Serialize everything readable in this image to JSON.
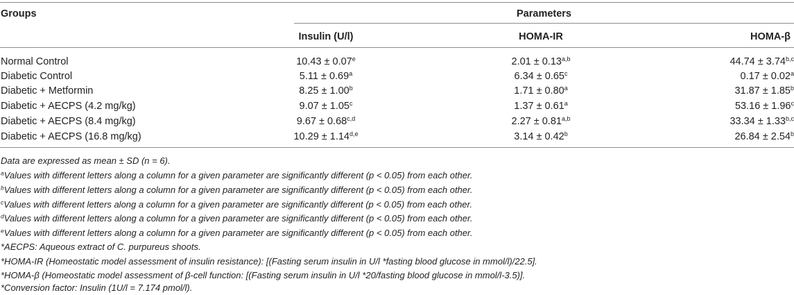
{
  "table": {
    "groups_header": "Groups",
    "parameters_header": "Parameters",
    "columns": [
      "Insulin (U/l)",
      "HOMA-IR",
      "HOMA-β"
    ],
    "rows": [
      {
        "group": "Normal Control",
        "insulin": "10.43 ± 0.07",
        "insulin_sup": "e",
        "homa_ir": "2.01 ± 0.13",
        "homa_ir_sup": "a,b",
        "homa_b": "44.74 ± 3.74",
        "homa_b_sup": "b,c"
      },
      {
        "group": "Diabetic Control",
        "insulin": "5.11 ± 0.69",
        "insulin_sup": "a",
        "homa_ir": "6.34 ± 0.65",
        "homa_ir_sup": "c",
        "homa_b": "0.17 ± 0.02",
        "homa_b_sup": "a"
      },
      {
        "group": "Diabetic + Metformin",
        "insulin": "8.25 ± 1.00",
        "insulin_sup": "b",
        "homa_ir": "1.71 ± 0.80",
        "homa_ir_sup": "a",
        "homa_b": "31.87 ± 1.85",
        "homa_b_sup": "b"
      },
      {
        "group": "Diabetic + AECPS (4.2 mg/kg)",
        "insulin": "9.07 ± 1.05",
        "insulin_sup": "c",
        "homa_ir": "1.37 ± 0.61",
        "homa_ir_sup": "a",
        "homa_b": "53.16 ± 1.96",
        "homa_b_sup": "c"
      },
      {
        "group": "Diabetic + AECPS (8.4 mg/kg)",
        "insulin": "9.67 ± 0.68",
        "insulin_sup": "c,d",
        "homa_ir": "2.27 ± 0.81",
        "homa_ir_sup": "a,b",
        "homa_b": "33.34 ± 1.33",
        "homa_b_sup": "b,c"
      },
      {
        "group": "Diabetic + AECPS (16.8 mg/kg)",
        "insulin": "10.29 ± 1.14",
        "insulin_sup": "d,e",
        "homa_ir": "3.14 ± 0.42",
        "homa_ir_sup": "b",
        "homa_b": "26.84 ± 2.54",
        "homa_b_sup": "b"
      }
    ]
  },
  "footnotes": {
    "data_note": "Data are expressed as mean ± SD (n = 6).",
    "letter_notes": [
      {
        "letter": "a",
        "text": "Values with different letters along a column for a given parameter are significantly different (p < 0.05) from each other."
      },
      {
        "letter": "b",
        "text": "Values with different letters along a column for a given parameter are significantly different (p < 0.05) from each other."
      },
      {
        "letter": "c",
        "text": "Values with different letters along a column for a given parameter are significantly different (p < 0.05) from each other."
      },
      {
        "letter": "d",
        "text": "Values with different letters along a column for a given parameter are significantly different (p < 0.05) from each other."
      },
      {
        "letter": "e",
        "text": "Values with different letters along a column for a given parameter are significantly different (p < 0.05) from each other."
      }
    ],
    "aecps": "*AECPS: Aqueous extract of C. purpureus shoots.",
    "homa_ir": "*HOMA-IR (Homeostatic model assessment of insulin resistance): [(Fasting serum insulin in U/l *fasting blood glucose in mmol/l)/22.5].",
    "homa_b": "*HOMA-β (Homeostatic model assessment of β-cell function: [(Fasting serum insulin in U/l *20/fasting blood glucose in mmol/l-3.5)].",
    "conversion": "*Conversion factor: Insulin (1U/l = 7.174 pmol/l)."
  }
}
